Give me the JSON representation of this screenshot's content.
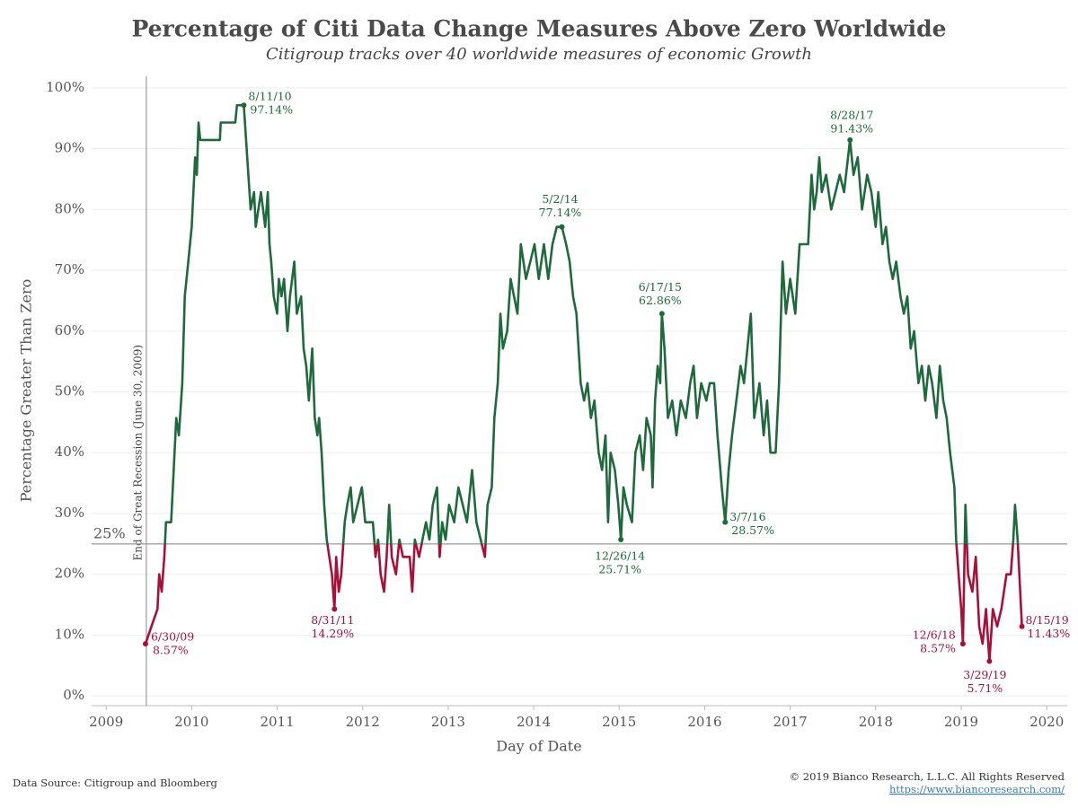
{
  "chart_data": {
    "type": "line",
    "title": "Percentage of Citi Data Change Measures Above Zero Worldwide",
    "subtitle": "Citigroup tracks over 40 worldwide measures of economic Growth",
    "x_label": "Day of Date",
    "y_label": "Percentage Greater Than Zero",
    "xlim": [
      2008.83,
      2020.24
    ],
    "ylim": [
      -1.6,
      101.9
    ],
    "xticks": [
      2009,
      2010,
      2011,
      2012,
      2013,
      2014,
      2015,
      2016,
      2017,
      2018,
      2019,
      2020
    ],
    "yticks": [
      {
        "value": 0,
        "label": "0%"
      },
      {
        "value": 10,
        "label": "10%"
      },
      {
        "value": 20,
        "label": "20%"
      },
      {
        "value": 30,
        "label": "30%"
      },
      {
        "value": 40,
        "label": "40%"
      },
      {
        "value": 50,
        "label": "50%"
      },
      {
        "value": 60,
        "label": "60%"
      },
      {
        "value": 70,
        "label": "70%"
      },
      {
        "value": 80,
        "label": "80%"
      },
      {
        "value": 90,
        "label": "90%"
      },
      {
        "value": 100,
        "label": "100%"
      }
    ],
    "grid": true,
    "above_color": "#1f6a3d",
    "below_color": "#a8103a",
    "threshold": {
      "y": 25,
      "label": "25%"
    },
    "reference_line": {
      "x": 2009.47,
      "label": "End of Great Recession (June 30, 2009)"
    },
    "x": [
      2009.46,
      2009.53,
      2009.6,
      2009.62,
      2009.65,
      2009.68,
      2009.7,
      2009.76,
      2009.78,
      2009.82,
      2009.85,
      2009.89,
      2009.92,
      2009.96,
      2010.0,
      2010.04,
      2010.06,
      2010.08,
      2010.1,
      2010.33,
      2010.34,
      2010.51,
      2010.53,
      2010.61,
      2010.65,
      2010.69,
      2010.73,
      2010.75,
      2010.81,
      2010.86,
      2010.89,
      2010.91,
      2010.93,
      2010.96,
      2011.0,
      2011.02,
      2011.05,
      2011.08,
      2011.12,
      2011.15,
      2011.2,
      2011.23,
      2011.28,
      2011.31,
      2011.34,
      2011.37,
      2011.41,
      2011.44,
      2011.47,
      2011.49,
      2011.52,
      2011.55,
      2011.58,
      2011.61,
      2011.64,
      2011.67,
      2011.69,
      2011.72,
      2011.75,
      2011.79,
      2011.82,
      2011.86,
      2011.89,
      2011.99,
      2012.03,
      2012.12,
      2012.15,
      2012.18,
      2012.21,
      2012.25,
      2012.28,
      2012.31,
      2012.34,
      2012.39,
      2012.43,
      2012.47,
      2012.55,
      2012.58,
      2012.61,
      2012.66,
      2012.7,
      2012.74,
      2012.78,
      2012.82,
      2012.87,
      2012.9,
      2012.93,
      2012.97,
      2013.01,
      2013.07,
      2013.12,
      2013.17,
      2013.22,
      2013.28,
      2013.33,
      2013.38,
      2013.43,
      2013.46,
      2013.51,
      2013.54,
      2013.58,
      2013.61,
      2013.64,
      2013.69,
      2013.73,
      2013.77,
      2013.81,
      2013.85,
      2013.91,
      2013.96,
      2014.01,
      2014.06,
      2014.12,
      2014.17,
      2014.22,
      2014.27,
      2014.33,
      2014.38,
      2014.42,
      2014.46,
      2014.5,
      2014.55,
      2014.59,
      2014.63,
      2014.67,
      2014.71,
      2014.76,
      2014.8,
      2014.84,
      2014.87,
      2014.9,
      2014.95,
      2014.99,
      2015.02,
      2015.05,
      2015.09,
      2015.15,
      2015.19,
      2015.24,
      2015.28,
      2015.32,
      2015.37,
      2015.39,
      2015.42,
      2015.45,
      2015.48,
      2015.5,
      2015.53,
      2015.57,
      2015.62,
      2015.67,
      2015.72,
      2015.78,
      2015.83,
      2015.87,
      2015.91,
      2015.96,
      2016.02,
      2016.06,
      2016.11,
      2016.15,
      2016.2,
      2016.24,
      2016.28,
      2016.32,
      2016.37,
      2016.42,
      2016.46,
      2016.5,
      2016.54,
      2016.58,
      2016.64,
      2016.69,
      2016.73,
      2016.77,
      2016.83,
      2016.87,
      2016.91,
      2016.95,
      2017.0,
      2017.06,
      2017.11,
      2017.21,
      2017.25,
      2017.28,
      2017.31,
      2017.34,
      2017.37,
      2017.42,
      2017.48,
      2017.53,
      2017.58,
      2017.63,
      2017.7,
      2017.74,
      2017.79,
      2017.84,
      2017.9,
      2017.95,
      2018.0,
      2018.03,
      2018.08,
      2018.12,
      2018.16,
      2018.2,
      2018.24,
      2018.29,
      2018.33,
      2018.37,
      2018.41,
      2018.45,
      2018.5,
      2018.54,
      2018.58,
      2018.62,
      2018.66,
      2018.71,
      2018.75,
      2018.79,
      2018.83,
      2018.87,
      2018.92,
      2018.94,
      2018.97,
      2019.0,
      2019.02,
      2019.05,
      2019.08,
      2019.13,
      2019.17,
      2019.21,
      2019.25,
      2019.29,
      2019.33,
      2019.37,
      2019.42,
      2019.47,
      2019.53,
      2019.58,
      2019.61,
      2019.63,
      2019.66,
      2019.68,
      2019.71
    ],
    "values": [
      8.57,
      11.43,
      14.29,
      20,
      17.14,
      22.86,
      28.57,
      28.57,
      34.29,
      45.71,
      42.86,
      51.43,
      65.71,
      71.43,
      77.14,
      88.57,
      85.71,
      94.29,
      91.43,
      91.43,
      94.29,
      94.29,
      97.14,
      97.14,
      88.57,
      80,
      82.86,
      77.14,
      82.86,
      77.14,
      82.86,
      74.29,
      71.43,
      65.71,
      62.86,
      68.57,
      65.71,
      68.57,
      60,
      65.71,
      71.43,
      62.86,
      65.71,
      57.14,
      54.29,
      48.57,
      57.14,
      45.71,
      42.86,
      45.71,
      40,
      31.43,
      25.71,
      22.86,
      20,
      14.29,
      22.86,
      17.14,
      20,
      28.57,
      31.43,
      34.29,
      28.57,
      34.29,
      28.57,
      28.57,
      22.86,
      25.71,
      20,
      17.14,
      22.86,
      31.43,
      22.86,
      20,
      25.71,
      22.86,
      22.86,
      17.14,
      25.71,
      22.86,
      25.71,
      28.57,
      25.71,
      31.43,
      34.29,
      22.86,
      28.57,
      25.71,
      31.43,
      28.57,
      34.29,
      31.43,
      28.57,
      37.14,
      28.57,
      25.71,
      22.86,
      31.43,
      34.29,
      45.71,
      51.43,
      62.86,
      57.14,
      60,
      68.57,
      65.71,
      62.86,
      74.29,
      68.57,
      71.43,
      74.29,
      68.57,
      74.29,
      68.57,
      74.29,
      77.14,
      77.14,
      74.29,
      71.43,
      65.71,
      62.86,
      51.43,
      48.57,
      51.43,
      45.71,
      48.57,
      40,
      37.14,
      42.86,
      28.57,
      40,
      37.14,
      31.43,
      25.71,
      34.29,
      31.43,
      28.57,
      40,
      42.86,
      37.14,
      45.71,
      42.86,
      34.29,
      48.57,
      54.29,
      51.43,
      62.86,
      57.14,
      45.71,
      48.57,
      42.86,
      48.57,
      45.71,
      51.43,
      54.29,
      45.71,
      51.43,
      48.57,
      51.43,
      51.43,
      42.86,
      34.29,
      28.57,
      37.14,
      42.86,
      48.57,
      54.29,
      51.43,
      57.14,
      62.86,
      45.71,
      51.43,
      42.86,
      48.57,
      40,
      40,
      51.43,
      71.43,
      62.86,
      68.57,
      62.86,
      74.29,
      74.29,
      85.71,
      80,
      82.86,
      88.57,
      82.86,
      85.71,
      80,
      82.86,
      85.71,
      82.86,
      91.43,
      85.71,
      88.57,
      80,
      85.71,
      82.86,
      77.14,
      82.86,
      74.29,
      77.14,
      71.43,
      68.57,
      71.43,
      65.71,
      62.86,
      65.71,
      57.14,
      60,
      51.43,
      54.29,
      48.57,
      54.29,
      51.43,
      45.71,
      54.29,
      48.57,
      45.71,
      40,
      34.29,
      25.71,
      20,
      14.29,
      8.57,
      31.43,
      20,
      17.14,
      22.86,
      11.43,
      8.57,
      14.29,
      5.71,
      14.29,
      11.43,
      14.29,
      20,
      20,
      25.71,
      31.43,
      25.71,
      20,
      11.43
    ],
    "annotations": [
      {
        "date": "8/11/10",
        "label": "97.14%",
        "x": 2010.61,
        "y": 97.14
      },
      {
        "date": "8/31/11",
        "label": "14.29%",
        "x": 2011.67,
        "y": 14.29
      },
      {
        "date": "6/30/09",
        "label": "8.57%",
        "x": 2009.46,
        "y": 8.57
      },
      {
        "date": "5/2/14",
        "label": "77.14%",
        "x": 2014.33,
        "y": 77.14
      },
      {
        "date": "12/26/14",
        "label": "25.71%",
        "x": 2015.02,
        "y": 25.71
      },
      {
        "date": "6/17/15",
        "label": "62.86%",
        "x": 2015.5,
        "y": 62.86
      },
      {
        "date": "3/7/16",
        "label": "28.57%",
        "x": 2016.24,
        "y": 28.57
      },
      {
        "date": "8/28/17",
        "label": "91.43%",
        "x": 2017.7,
        "y": 91.43
      },
      {
        "date": "12/6/18",
        "label": "8.57%",
        "x": 2019.02,
        "y": 8.57
      },
      {
        "date": "3/29/19",
        "label": "5.71%",
        "x": 2019.33,
        "y": 5.71
      },
      {
        "date": "8/15/19",
        "label": "11.43%",
        "x": 2019.71,
        "y": 11.43
      }
    ],
    "source": "Data Source: Citigroup and Bloomberg",
    "copyright": "© 2019 Bianco Research, L.L.C. All Rights Reserved",
    "url": "https://www.biancoresearch.com/"
  }
}
